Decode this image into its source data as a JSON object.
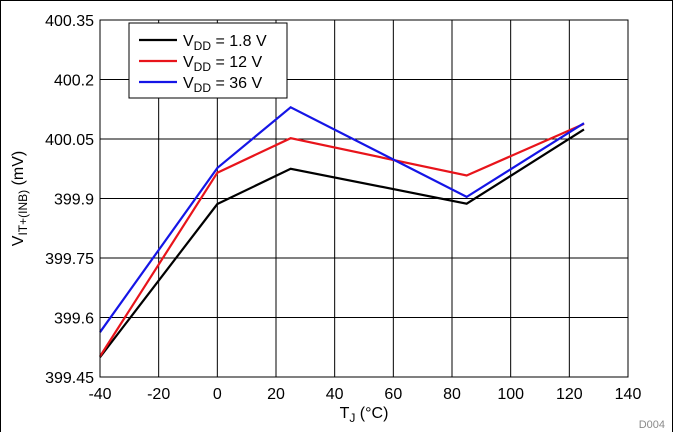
{
  "figure_id": "D004",
  "chart_data": {
    "type": "line",
    "title": "",
    "xlabel": {
      "main": "T",
      "sub": "J",
      "unit": " (°C)"
    },
    "ylabel": {
      "main": "V",
      "sub": "IT+(INB)",
      "unit": " (mV)"
    },
    "xlim": [
      -40,
      140
    ],
    "ylim": [
      399.45,
      400.35
    ],
    "xticks": [
      -40,
      -20,
      0,
      20,
      40,
      60,
      80,
      100,
      120,
      140
    ],
    "xtick_labels": [
      "-40",
      "-20",
      "0",
      "20",
      "40",
      "60",
      "80",
      "100",
      "120",
      "140"
    ],
    "yticks": [
      399.45,
      399.6,
      399.75,
      399.9,
      400.05,
      400.2,
      400.35
    ],
    "ytick_labels": [
      "399.45",
      "399.6",
      "399.75",
      "399.9",
      "400.05",
      "400.2",
      "400.35"
    ],
    "grid": true,
    "legend_position": "top-left",
    "x": [
      -40,
      0,
      25,
      85,
      125
    ],
    "series": [
      {
        "name": "V_DD = 1.8 V",
        "legend": {
          "main": "V",
          "sub": "DD",
          "rest": " = 1.8 V"
        },
        "color": "#000000",
        "values": [
          399.5,
          399.886,
          399.975,
          399.887,
          400.074
        ]
      },
      {
        "name": "V_DD = 12 V",
        "legend": {
          "main": "V",
          "sub": "DD",
          "rest": " = 12 V"
        },
        "color": "#e8141b",
        "values": [
          399.502,
          399.965,
          400.052,
          399.958,
          400.088
        ]
      },
      {
        "name": "V_DD = 36 V",
        "legend": {
          "main": "V",
          "sub": "DD",
          "rest": " = 36 V"
        },
        "color": "#1515e6",
        "values": [
          399.563,
          399.977,
          400.13,
          399.904,
          400.09
        ]
      }
    ]
  }
}
